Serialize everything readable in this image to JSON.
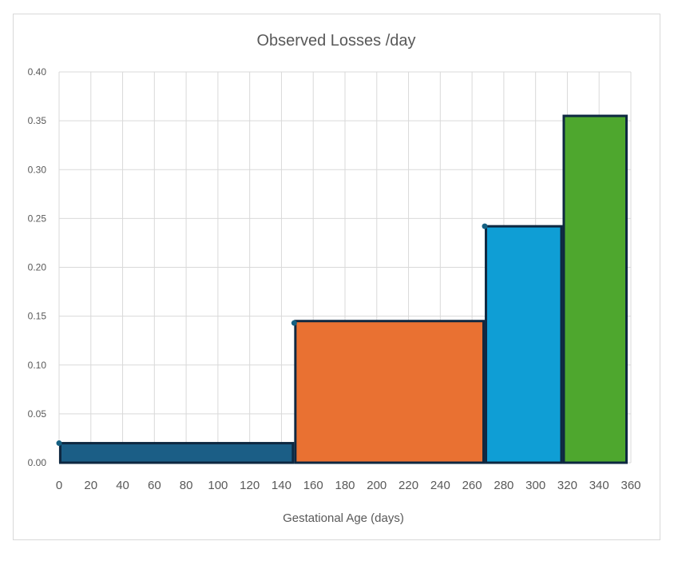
{
  "chart_data": {
    "type": "bar",
    "title": "Observed Losses /day",
    "xlabel": "Gestational Age (days)",
    "ylabel": "",
    "xlim": [
      0,
      360
    ],
    "ylim": [
      0,
      0.4
    ],
    "x_ticks": [
      "0",
      "20",
      "40",
      "60",
      "80",
      "100",
      "120",
      "140",
      "160",
      "180",
      "200",
      "220",
      "240",
      "260",
      "280",
      "300",
      "320",
      "340",
      "360"
    ],
    "y_ticks": [
      "0.00",
      "0.05",
      "0.10",
      "0.15",
      "0.20",
      "0.25",
      "0.30",
      "0.35",
      "0.40"
    ],
    "grid": true,
    "legend": "none",
    "bars": [
      {
        "x_start": 0,
        "x_end": 148,
        "value": 0.02,
        "color": "#1b5e86"
      },
      {
        "x_start": 148,
        "x_end": 268,
        "value": 0.145,
        "color": "#e97132"
      },
      {
        "x_start": 268,
        "x_end": 317,
        "value": 0.242,
        "color": "#0f9ed5"
      },
      {
        "x_start": 317,
        "x_end": 358,
        "value": 0.355,
        "color": "#4ea72e"
      }
    ],
    "markers": [
      {
        "x": 0,
        "y": 0.02
      },
      {
        "x": 148,
        "y": 0.143
      },
      {
        "x": 268,
        "y": 0.242
      }
    ],
    "bar_outline_color": "#0e2841",
    "grid_color": "#d9d9d9",
    "marker_color": "#156082"
  }
}
